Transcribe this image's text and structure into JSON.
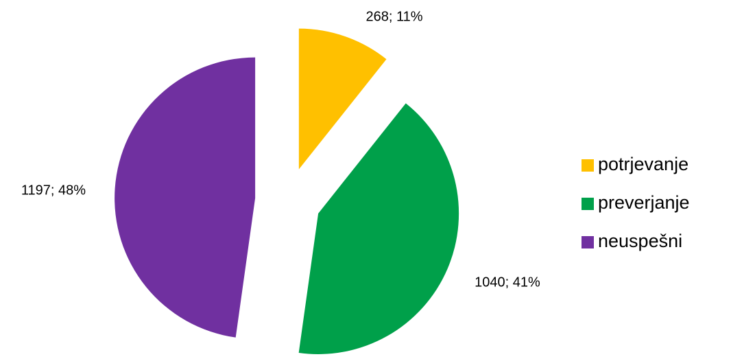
{
  "chart_data": {
    "type": "pie",
    "categories": [
      "potrjevanje",
      "preverjanje",
      "neuspešni"
    ],
    "values": [
      268,
      1040,
      1197
    ],
    "value_labels": [
      "268; 11%",
      "1040; 41%",
      "1197; 48%"
    ],
    "colors": [
      "#ffc000",
      "#00a04a",
      "#7030a0"
    ],
    "legend": "right"
  }
}
